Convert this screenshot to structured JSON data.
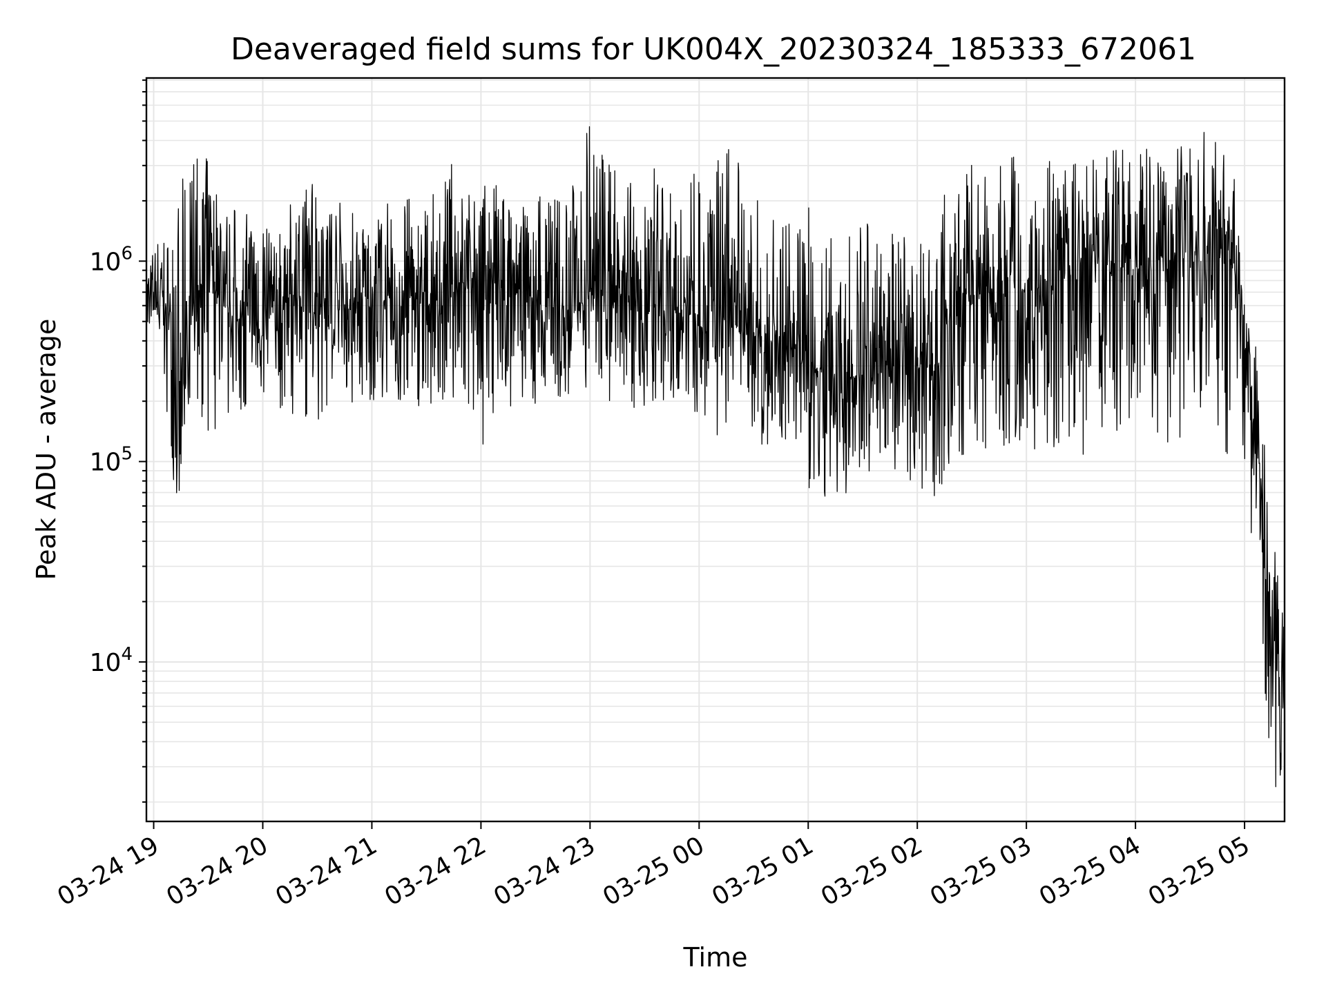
{
  "chart_data": {
    "type": "line",
    "title": "Deaveraged field sums for UK004X_20230324_185333_672061",
    "xlabel": "Time",
    "ylabel": "Peak ADU - average",
    "yscale": "log",
    "ylim": [
      1600,
      8200000
    ],
    "xlim": [
      "03-24 18:56",
      "03-25 05:22"
    ],
    "grid": true,
    "line_color": "#000000",
    "x_ticks": [
      "03-24 19",
      "03-24 20",
      "03-24 21",
      "03-24 22",
      "03-24 23",
      "03-25 00",
      "03-25 01",
      "03-25 02",
      "03-25 03",
      "03-25 04",
      "03-25 05"
    ],
    "y_ticks": [
      {
        "base": "10",
        "exp": "4",
        "value": 10000
      },
      {
        "base": "10",
        "exp": "5",
        "value": 100000
      },
      {
        "base": "10",
        "exp": "6",
        "value": 1000000
      }
    ],
    "series": [
      {
        "x_unit": "time",
        "x": [
          "03-24 18:56",
          "03-24 19:05",
          "03-24 19:10",
          "03-24 19:14",
          "03-24 19:22",
          "03-24 19:30",
          "03-24 19:40",
          "03-24 19:52",
          "03-24 20:00",
          "03-24 20:05",
          "03-24 20:15",
          "03-24 20:30",
          "03-24 20:45",
          "03-24 21:00",
          "03-24 21:15",
          "03-24 21:30",
          "03-24 21:45",
          "03-24 21:50",
          "03-24 22:00",
          "03-24 22:10",
          "03-24 22:20",
          "03-24 22:35",
          "03-24 22:50",
          "03-24 23:00",
          "03-24 23:10",
          "03-24 23:20",
          "03-24 23:40",
          "03-24 23:55",
          "03-25 00:10",
          "03-25 00:20",
          "03-25 00:35",
          "03-25 00:50",
          "03-25 01:00",
          "03-25 01:20",
          "03-25 01:40",
          "03-25 01:55",
          "03-25 02:10",
          "03-25 02:20",
          "03-25 02:40",
          "03-25 03:00",
          "03-25 03:20",
          "03-25 03:40",
          "03-25 04:00",
          "03-25 04:20",
          "03-25 04:40",
          "03-25 04:55",
          "03-25 05:00",
          "03-25 05:04",
          "03-25 05:08",
          "03-25 05:12",
          "03-25 05:16",
          "03-25 05:20",
          "03-25 05:22"
        ],
        "y": [
          650000,
          600000,
          500000,
          120000,
          650000,
          900000,
          550000,
          500000,
          450000,
          550000,
          650000,
          700000,
          550000,
          650000,
          600000,
          600000,
          700000,
          900000,
          800000,
          650000,
          700000,
          600000,
          550000,
          700000,
          650000,
          700000,
          550000,
          550000,
          550000,
          450000,
          400000,
          380000,
          300000,
          260000,
          280000,
          300000,
          300000,
          650000,
          700000,
          700000,
          800000,
          1000000,
          900000,
          1100000,
          1100000,
          1000000,
          400000,
          200000,
          90000,
          25000,
          12000,
          8000,
          5000
        ],
        "y_peak": [
          1000000,
          1500000,
          1200000,
          2400000,
          3500000,
          3300000,
          2000000,
          1800000,
          2400000,
          1200000,
          1900000,
          3200000,
          1900000,
          1800000,
          2200000,
          1900000,
          3300000,
          2200000,
          2400000,
          2500000,
          1800000,
          2400000,
          2400000,
          5800000,
          3200000,
          4400000,
          2600000,
          2800000,
          4500000,
          3500000,
          1800000,
          1600000,
          2000000,
          1600000,
          1500000,
          1300000,
          1200000,
          4300000,
          3000000,
          3500000,
          3200000,
          3300000,
          4000000,
          3800000,
          4700000,
          2700000,
          600000,
          600000,
          350000,
          120000,
          45000,
          25000,
          15000
        ],
        "y_trough": [
          450000,
          250000,
          85000,
          50000,
          220000,
          95000,
          160000,
          150000,
          200000,
          95000,
          170000,
          150000,
          180000,
          200000,
          170000,
          180000,
          200000,
          160000,
          100000,
          200000,
          160000,
          180000,
          180000,
          190000,
          200000,
          180000,
          200000,
          190000,
          120000,
          160000,
          120000,
          120000,
          60000,
          65000,
          100000,
          80000,
          62000,
          90000,
          120000,
          120000,
          100000,
          110000,
          180000,
          110000,
          150000,
          90000,
          80000,
          40000,
          10000,
          5000,
          2200,
          2500,
          3000
        ]
      }
    ]
  }
}
